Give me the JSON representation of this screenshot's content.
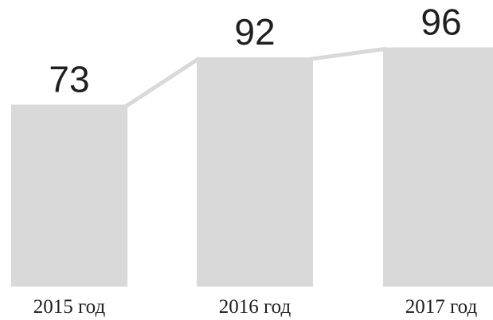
{
  "chart_data": {
    "type": "bar",
    "categories": [
      "2015 год",
      "2016 год",
      "2017 год"
    ],
    "values": [
      73,
      92,
      96
    ],
    "value_labels": [
      "73",
      "92",
      "96"
    ],
    "title": "",
    "xlabel": "",
    "ylabel": "",
    "ylim": [
      0,
      100
    ],
    "grid": false,
    "connector_line": true,
    "colors": {
      "bar": "#d9d9d9",
      "connector": "#d9d9d9",
      "text": "#1f1f1f"
    }
  }
}
